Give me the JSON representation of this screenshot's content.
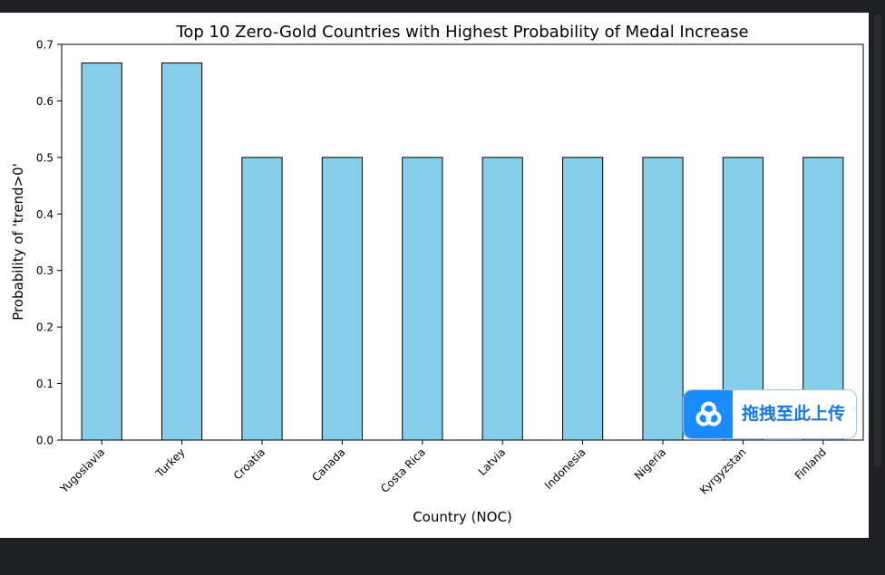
{
  "chart_data": {
    "type": "bar",
    "title": "Top 10 Zero-Gold Countries with Highest Probability of Medal Increase",
    "xlabel": "Country (NOC)",
    "ylabel": "Probability of 'trend>0'",
    "categories": [
      "Yugoslavia",
      "Turkey",
      "Croatia",
      "Canada",
      "Costa Rica",
      "Latvia",
      "Indonesia",
      "Nigeria",
      "Kyrgyzstan",
      "Finland"
    ],
    "values": [
      0.667,
      0.667,
      0.5,
      0.5,
      0.5,
      0.5,
      0.5,
      0.5,
      0.5,
      0.5
    ],
    "ylim": [
      0.0,
      0.7
    ],
    "yticks": [
      "0.0",
      "0.1",
      "0.2",
      "0.3",
      "0.4",
      "0.5",
      "0.6",
      "0.7"
    ],
    "bar_color": "#87ceeb",
    "edge_color": "#000000",
    "grid": false,
    "legend": "none"
  },
  "overlay": {
    "upload_label": "拖拽至此上传",
    "upload_icon": "cloud-link-icon",
    "accent_color": "#1a8cff"
  }
}
